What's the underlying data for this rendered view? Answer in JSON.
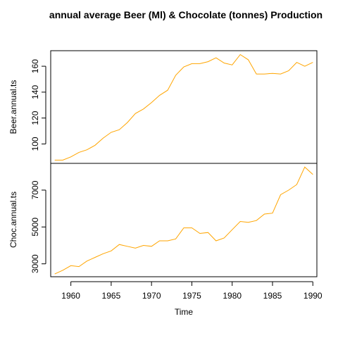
{
  "chart_data": {
    "type": "line",
    "title": "annual average Beer (Ml) & Chocolate (tonnes) Production",
    "xlabel": "Time",
    "xlim": [
      1957.5,
      1990.5
    ],
    "x_ticks": [
      1960,
      1965,
      1970,
      1975,
      1980,
      1985,
      1990
    ],
    "line_color": "#FFA500",
    "x": [
      1958,
      1959,
      1960,
      1961,
      1962,
      1963,
      1964,
      1965,
      1966,
      1967,
      1968,
      1969,
      1970,
      1971,
      1972,
      1973,
      1974,
      1975,
      1976,
      1977,
      1978,
      1979,
      1980,
      1981,
      1982,
      1983,
      1984,
      1985,
      1986,
      1987,
      1988,
      1989,
      1990
    ],
    "panels": [
      {
        "name": "Beer.annual.ts",
        "ylabel": "Beer.annual.ts",
        "ylim": [
          85,
          172
        ],
        "y_ticks": [
          100,
          120,
          140,
          160
        ],
        "values": [
          87.5,
          87.5,
          90,
          93.5,
          95.5,
          99,
          104.5,
          109,
          111,
          116.5,
          123.5,
          127,
          132,
          137.5,
          141.5,
          153,
          159.5,
          162,
          162,
          163.5,
          166.5,
          162.5,
          161,
          169,
          165,
          154,
          154,
          154.5,
          154,
          156.5,
          163,
          160,
          163
        ]
      },
      {
        "name": "Choc.annual.ts",
        "ylabel": "Choc.annual.ts",
        "ylim": [
          2300,
          8450
        ],
        "y_ticks": [
          3000,
          5000,
          7000
        ],
        "values": [
          2450,
          2650,
          2900,
          2850,
          3150,
          3350,
          3550,
          3700,
          4050,
          3950,
          3850,
          4000,
          3950,
          4250,
          4250,
          4350,
          4950,
          4950,
          4650,
          4700,
          4250,
          4400,
          4850,
          5300,
          5250,
          5350,
          5700,
          5750,
          6750,
          7000,
          7300,
          8250,
          7850
        ]
      }
    ]
  }
}
